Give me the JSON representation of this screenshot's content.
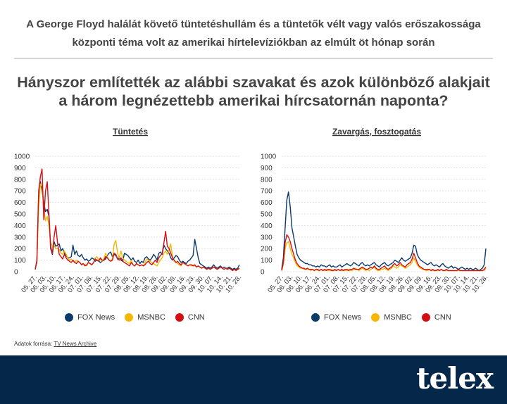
{
  "header": {
    "line1": "A George Floyd halálát követő tüntetéshullám és a tüntetők vélt vagy valós erőszakossága",
    "line2": "központi téma volt az amerikai hírtelevíziókban az elmúlt öt hónap során"
  },
  "subtitle": {
    "line1": "Hányszor említették az alábbi szavakat és azok különböző alakjait",
    "line2": "a három legnézettebb amerikai hírcsatornán naponta?"
  },
  "colors": {
    "fox": "#0b3a6b",
    "msnbc": "#f5b700",
    "cnn": "#d40f14"
  },
  "legend": [
    {
      "label": "FOX News",
      "color": "#0b3a6b"
    },
    {
      "label": "MSNBC",
      "color": "#f5b700"
    },
    {
      "label": "CNN",
      "color": "#d40f14"
    }
  ],
  "source": {
    "prefix": "Adatok forrása: ",
    "link": "TV News Archive"
  },
  "footer": {
    "logo": "telex"
  },
  "chart_data": [
    {
      "type": "line",
      "title": "Tüntetés",
      "ylim": [
        0,
        1000
      ],
      "yticks": [
        0,
        100,
        200,
        300,
        400,
        500,
        600,
        700,
        800,
        900,
        1000
      ],
      "grid": true,
      "legend_position": "bottom",
      "xticks": [
        "05. 27.",
        "06. 03.",
        "06. 10.",
        "06. 17.",
        "06. 24.",
        "07. 01.",
        "07. 08.",
        "07. 15.",
        "07. 22.",
        "07. 29.",
        "08. 05.",
        "08. 12.",
        "08. 19.",
        "08. 26.",
        "09. 02.",
        "09. 09.",
        "09. 16.",
        "09. 23.",
        "09. 30.",
        "10. 07.",
        "10. 14.",
        "10. 21.",
        "10. 28."
      ],
      "series": [
        {
          "name": "FOX News",
          "color": "#0b3a6b",
          "values": [
            20,
            100,
            650,
            780,
            700,
            600,
            520,
            540,
            480,
            200,
            150,
            260,
            220,
            230,
            240,
            180,
            200,
            160,
            140,
            120,
            120,
            130,
            230,
            150,
            180,
            140,
            130,
            150,
            120,
            100,
            110,
            90,
            100,
            120,
            110,
            90,
            100,
            90,
            80,
            90,
            100,
            110,
            140,
            160,
            170,
            130,
            150,
            140,
            110,
            120,
            100,
            90,
            160,
            150,
            140,
            120,
            100,
            120,
            90,
            80,
            100,
            70,
            90,
            80,
            120,
            130,
            110,
            100,
            120,
            150,
            130,
            100,
            160,
            170,
            150,
            230,
            200,
            180,
            160,
            120,
            100,
            120,
            140,
            130,
            100,
            80,
            90,
            80,
            70,
            90,
            100,
            120,
            140,
            280,
            200,
            120,
            70,
            60,
            50,
            40,
            30,
            40,
            30,
            40,
            60,
            40,
            30,
            40,
            50,
            30,
            40,
            30,
            30,
            40,
            30,
            20,
            30,
            20,
            30,
            60
          ]
        },
        {
          "name": "MSNBC",
          "color": "#f5b700",
          "values": [
            30,
            80,
            550,
            760,
            740,
            550,
            440,
            480,
            400,
            250,
            220,
            230,
            200,
            200,
            190,
            160,
            150,
            180,
            150,
            120,
            100,
            110,
            90,
            80,
            100,
            90,
            80,
            60,
            70,
            60,
            50,
            80,
            70,
            60,
            80,
            120,
            130,
            100,
            110,
            90,
            110,
            160,
            130,
            100,
            90,
            110,
            240,
            270,
            160,
            120,
            180,
            120,
            100,
            90,
            80,
            70,
            100,
            60,
            50,
            70,
            60,
            50,
            60,
            50,
            80,
            110,
            100,
            90,
            80,
            70,
            60,
            50,
            80,
            100,
            120,
            160,
            180,
            150,
            190,
            240,
            130,
            90,
            80,
            70,
            60,
            50,
            80,
            70,
            60,
            50,
            60,
            50,
            60,
            50,
            40,
            50,
            40,
            30,
            40,
            30,
            20,
            30,
            20,
            30,
            40,
            30,
            20,
            30,
            40,
            30,
            20,
            30,
            20,
            30,
            20,
            10,
            20,
            10,
            20,
            20
          ]
        },
        {
          "name": "CNN",
          "color": "#d40f14",
          "values": [
            20,
            90,
            700,
            820,
            890,
            450,
            700,
            780,
            500,
            220,
            160,
            300,
            400,
            250,
            150,
            130,
            110,
            150,
            120,
            100,
            90,
            80,
            100,
            80,
            70,
            90,
            80,
            60,
            70,
            50,
            60,
            80,
            70,
            60,
            80,
            110,
            100,
            90,
            120,
            100,
            100,
            130,
            120,
            100,
            90,
            100,
            160,
            150,
            110,
            100,
            120,
            90,
            80,
            70,
            60,
            50,
            80,
            60,
            50,
            70,
            60,
            50,
            60,
            50,
            60,
            80,
            90,
            70,
            60,
            80,
            100,
            80,
            120,
            140,
            160,
            250,
            350,
            220,
            200,
            160,
            120,
            100,
            80,
            90,
            70,
            60,
            80,
            70,
            60,
            50,
            60,
            60,
            50,
            60,
            40,
            50,
            40,
            30,
            40,
            30,
            20,
            30,
            20,
            30,
            40,
            30,
            20,
            30,
            40,
            30,
            20,
            30,
            20,
            30,
            20,
            10,
            20,
            10,
            20,
            30
          ]
        }
      ]
    },
    {
      "type": "line",
      "title": "Zavargás, fosztogatás",
      "ylim": [
        0,
        1000
      ],
      "yticks": [
        0,
        100,
        200,
        300,
        400,
        500,
        600,
        700,
        800,
        900,
        1000
      ],
      "grid": true,
      "legend_position": "bottom",
      "xticks": [
        "05. 27.",
        "06. 03.",
        "06. 10.",
        "06. 17.",
        "06. 24.",
        "07. 01.",
        "07. 08.",
        "07. 15.",
        "07. 22.",
        "07. 29.",
        "08. 05.",
        "08. 12.",
        "08. 19.",
        "08. 26.",
        "09. 02.",
        "09. 09.",
        "09. 16.",
        "09. 23.",
        "09. 30.",
        "10. 07.",
        "10. 14.",
        "10. 21.",
        "10. 28."
      ],
      "series": [
        {
          "name": "FOX News",
          "color": "#0b3a6b",
          "values": [
            20,
            120,
            380,
            620,
            690,
            560,
            380,
            300,
            220,
            150,
            120,
            100,
            90,
            80,
            70,
            70,
            60,
            60,
            50,
            50,
            40,
            50,
            40,
            60,
            50,
            50,
            40,
            50,
            60,
            40,
            50,
            40,
            40,
            50,
            60,
            40,
            50,
            60,
            70,
            60,
            50,
            60,
            80,
            70,
            60,
            50,
            70,
            80,
            60,
            50,
            60,
            50,
            60,
            70,
            80,
            60,
            50,
            40,
            60,
            70,
            80,
            60,
            50,
            60,
            70,
            80,
            100,
            90,
            80,
            100,
            120,
            100,
            90,
            100,
            110,
            120,
            160,
            230,
            220,
            150,
            120,
            100,
            90,
            80,
            70,
            60,
            70,
            80,
            60,
            50,
            60,
            50,
            40,
            60,
            70,
            50,
            40,
            30,
            40,
            50,
            30,
            40,
            30,
            20,
            30,
            40,
            30,
            20,
            30,
            20,
            30,
            20,
            20,
            30,
            20,
            10,
            20,
            30,
            60,
            200
          ]
        },
        {
          "name": "MSNBC",
          "color": "#f5b700",
          "values": [
            10,
            60,
            200,
            250,
            260,
            200,
            150,
            120,
            80,
            50,
            40,
            30,
            30,
            20,
            20,
            20,
            20,
            10,
            20,
            10,
            20,
            10,
            10,
            20,
            10,
            10,
            20,
            10,
            10,
            20,
            10,
            10,
            10,
            20,
            10,
            10,
            10,
            10,
            10,
            20,
            10,
            10,
            20,
            30,
            20,
            10,
            20,
            30,
            20,
            10,
            20,
            10,
            20,
            30,
            40,
            20,
            10,
            10,
            20,
            20,
            30,
            20,
            10,
            20,
            30,
            50,
            40,
            30,
            40,
            60,
            50,
            40,
            30,
            40,
            50,
            60,
            80,
            120,
            90,
            60,
            40,
            30,
            20,
            20,
            10,
            10,
            20,
            10,
            10,
            10,
            10,
            10,
            10,
            20,
            10,
            10,
            10,
            10,
            10,
            10,
            10,
            10,
            10,
            10,
            10,
            10,
            10,
            10,
            10,
            10,
            10,
            10,
            10,
            10,
            10,
            10,
            10,
            10,
            10,
            30
          ]
        },
        {
          "name": "CNN",
          "color": "#d40f14",
          "values": [
            10,
            80,
            250,
            320,
            300,
            260,
            200,
            150,
            100,
            70,
            50,
            40,
            30,
            30,
            20,
            30,
            20,
            20,
            20,
            10,
            20,
            20,
            10,
            20,
            10,
            20,
            10,
            20,
            20,
            10,
            10,
            20,
            10,
            20,
            10,
            20,
            10,
            20,
            20,
            10,
            20,
            20,
            30,
            20,
            20,
            20,
            30,
            40,
            30,
            20,
            20,
            30,
            40,
            30,
            50,
            30,
            20,
            20,
            30,
            40,
            50,
            30,
            20,
            30,
            40,
            60,
            70,
            50,
            60,
            80,
            60,
            50,
            40,
            60,
            70,
            80,
            110,
            160,
            120,
            80,
            50,
            40,
            30,
            20,
            20,
            20,
            20,
            10,
            20,
            10,
            10,
            20,
            10,
            20,
            10,
            10,
            20,
            10,
            10,
            10,
            10,
            10,
            10,
            20,
            10,
            10,
            10,
            10,
            10,
            10,
            10,
            10,
            10,
            10,
            10,
            10,
            10,
            10,
            20,
            40
          ]
        }
      ]
    }
  ]
}
